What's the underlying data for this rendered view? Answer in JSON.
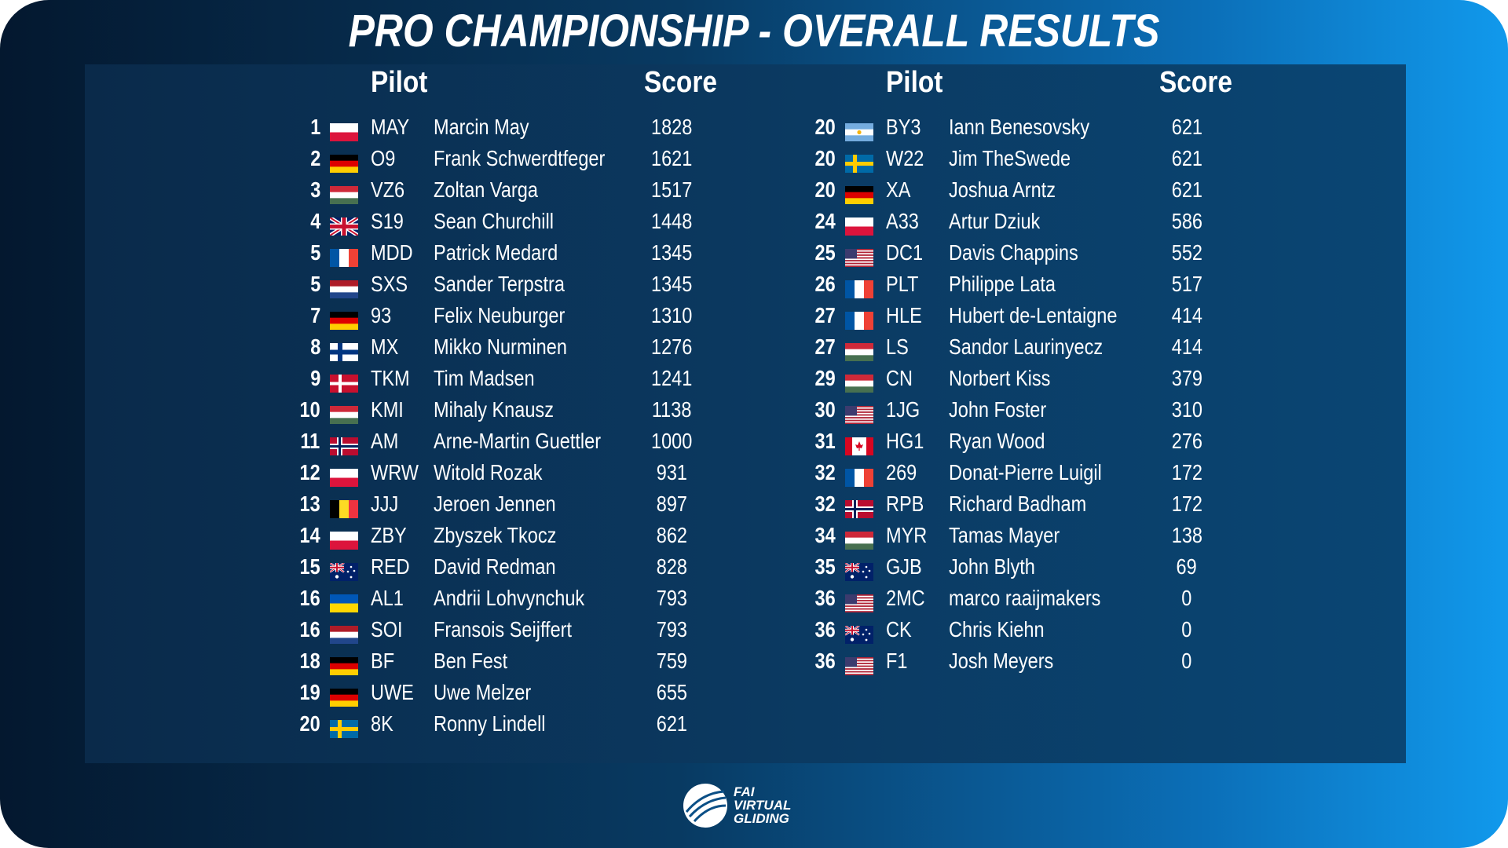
{
  "title": "PRO CHAMPIONSHIP - OVERALL RESULTS",
  "headers": {
    "pilot": "Pilot",
    "score": "Score"
  },
  "logo": {
    "line1": "FAI",
    "line2": "VIRTUAL",
    "line3": "GLIDING"
  },
  "left": [
    {
      "rank": "1",
      "flag": "pl",
      "code": "MAY",
      "name": "Marcin May",
      "score": "1828"
    },
    {
      "rank": "2",
      "flag": "de",
      "code": "O9",
      "name": "Frank Schwerdtfeger",
      "score": "1621"
    },
    {
      "rank": "3",
      "flag": "hu",
      "code": "VZ6",
      "name": "Zoltan Varga",
      "score": "1517"
    },
    {
      "rank": "4",
      "flag": "gb",
      "code": "S19",
      "name": "Sean Churchill",
      "score": "1448"
    },
    {
      "rank": "5",
      "flag": "fr",
      "code": "MDD",
      "name": "Patrick Medard",
      "score": "1345"
    },
    {
      "rank": "5",
      "flag": "nl",
      "code": "SXS",
      "name": "Sander Terpstra",
      "score": "1345"
    },
    {
      "rank": "7",
      "flag": "de",
      "code": "93",
      "name": "Felix Neuburger",
      "score": "1310"
    },
    {
      "rank": "8",
      "flag": "fi",
      "code": "MX",
      "name": "Mikko Nurminen",
      "score": "1276"
    },
    {
      "rank": "9",
      "flag": "dk",
      "code": "TKM",
      "name": "Tim Madsen",
      "score": "1241"
    },
    {
      "rank": "10",
      "flag": "hu",
      "code": "KMI",
      "name": "Mihaly Knausz",
      "score": "1138"
    },
    {
      "rank": "11",
      "flag": "no",
      "code": "AM",
      "name": "Arne-Martin Guettler",
      "score": "1000"
    },
    {
      "rank": "12",
      "flag": "pl",
      "code": "WRW",
      "name": "Witold Rozak",
      "score": "931"
    },
    {
      "rank": "13",
      "flag": "be",
      "code": "JJJ",
      "name": "Jeroen Jennen",
      "score": "897"
    },
    {
      "rank": "14",
      "flag": "pl",
      "code": "ZBY",
      "name": "Zbyszek Tkocz",
      "score": "862"
    },
    {
      "rank": "15",
      "flag": "au",
      "code": "RED",
      "name": "David Redman",
      "score": "828"
    },
    {
      "rank": "16",
      "flag": "ua",
      "code": "AL1",
      "name": "Andrii Lohvynchuk",
      "score": "793"
    },
    {
      "rank": "16",
      "flag": "nl",
      "code": "SOI",
      "name": "Fransois Seijffert",
      "score": "793"
    },
    {
      "rank": "18",
      "flag": "de",
      "code": "BF",
      "name": "Ben Fest",
      "score": "759"
    },
    {
      "rank": "19",
      "flag": "de",
      "code": "UWE",
      "name": "Uwe Melzer",
      "score": "655"
    },
    {
      "rank": "20",
      "flag": "se",
      "code": "8K",
      "name": "Ronny Lindell",
      "score": "621"
    }
  ],
  "right": [
    {
      "rank": "20",
      "flag": "ar",
      "code": "BY3",
      "name": "Iann Benesovsky",
      "score": "621"
    },
    {
      "rank": "20",
      "flag": "se",
      "code": "W22",
      "name": "Jim TheSwede",
      "score": "621"
    },
    {
      "rank": "20",
      "flag": "de",
      "code": "XA",
      "name": "Joshua Arntz",
      "score": "621"
    },
    {
      "rank": "24",
      "flag": "pl",
      "code": "A33",
      "name": "Artur Dziuk",
      "score": "586"
    },
    {
      "rank": "25",
      "flag": "us",
      "code": "DC1",
      "name": "Davis Chappins",
      "score": "552"
    },
    {
      "rank": "26",
      "flag": "fr",
      "code": "PLT",
      "name": "Philippe Lata",
      "score": "517"
    },
    {
      "rank": "27",
      "flag": "fr",
      "code": "HLE",
      "name": "Hubert de-Lentaigne",
      "score": "414"
    },
    {
      "rank": "27",
      "flag": "hu",
      "code": "LS",
      "name": "Sandor Laurinyecz",
      "score": "414"
    },
    {
      "rank": "29",
      "flag": "hu",
      "code": "CN",
      "name": "Norbert Kiss",
      "score": "379"
    },
    {
      "rank": "30",
      "flag": "us",
      "code": "1JG",
      "name": "John Foster",
      "score": "310"
    },
    {
      "rank": "31",
      "flag": "ca",
      "code": "HG1",
      "name": "Ryan Wood",
      "score": "276"
    },
    {
      "rank": "32",
      "flag": "fr",
      "code": "269",
      "name": "Donat-Pierre Luigil",
      "score": "172"
    },
    {
      "rank": "32",
      "flag": "no",
      "code": "RPB",
      "name": "Richard Badham",
      "score": "172"
    },
    {
      "rank": "34",
      "flag": "hu",
      "code": "MYR",
      "name": "Tamas Mayer",
      "score": "138"
    },
    {
      "rank": "35",
      "flag": "au",
      "code": "GJB",
      "name": "John Blyth",
      "score": "69"
    },
    {
      "rank": "36",
      "flag": "us",
      "code": "2MC",
      "name": "marco raaijmakers",
      "score": "0"
    },
    {
      "rank": "36",
      "flag": "au",
      "code": "CK",
      "name": "Chris Kiehn",
      "score": "0"
    },
    {
      "rank": "36",
      "flag": "us",
      "code": "F1",
      "name": "Josh Meyers",
      "score": "0"
    }
  ]
}
